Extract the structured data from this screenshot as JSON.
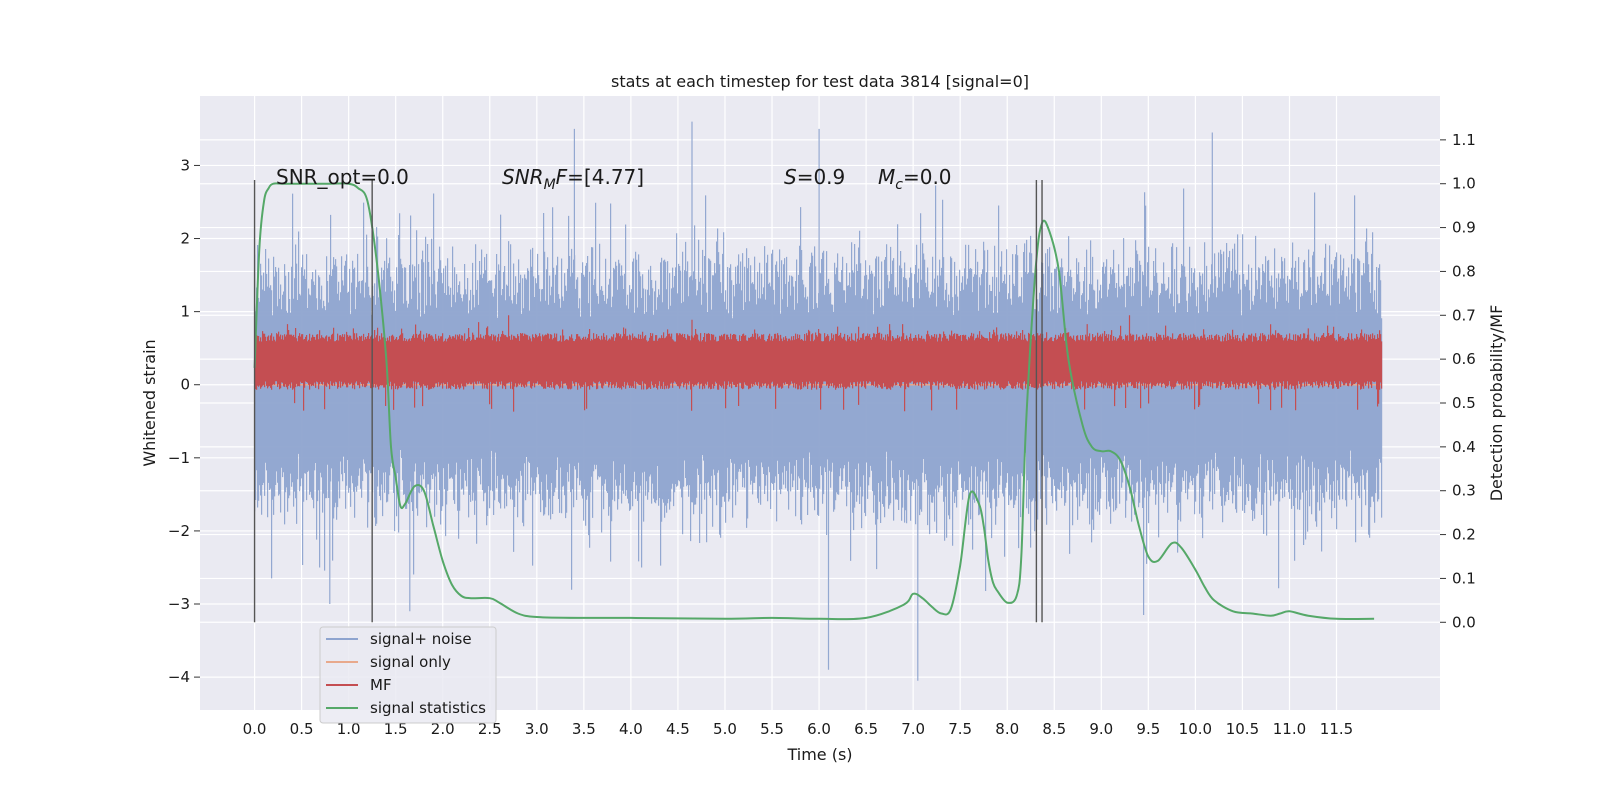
{
  "chart_data": {
    "type": "line",
    "title": "stats at each timestep for test data 3814 [signal=0]",
    "xlabel": "Time (s)",
    "ylabel": "Whitened strain",
    "y2label": "Detection probability/MF",
    "xlim": [
      -0.58,
      12.6
    ],
    "ylim": [
      -4.45,
      3.95
    ],
    "y2lim": [
      -0.2,
      1.2
    ],
    "x_ticks": [
      0.0,
      0.5,
      1.0,
      1.5,
      2.0,
      2.5,
      3.0,
      3.5,
      4.0,
      4.5,
      5.0,
      5.5,
      6.0,
      6.5,
      7.0,
      7.5,
      8.0,
      8.5,
      9.0,
      9.5,
      10.0,
      10.5,
      11.0,
      11.5
    ],
    "x_tick_labels": [
      "0.0",
      "0.5",
      "1.0",
      "1.5",
      "2.0",
      "2.5",
      "3.0",
      "3.5",
      "4.0",
      "4.5",
      "5.0",
      "5.5",
      "6.0",
      "6.5",
      "7.0",
      "7.5",
      "8.0",
      "8.5",
      "9.0",
      "9.5",
      "10.0",
      "10.5",
      "11.0",
      "11.5"
    ],
    "y_ticks": [
      -4,
      -3,
      -2,
      -1,
      0,
      1,
      2,
      3
    ],
    "y_tick_labels": [
      "−4",
      "−3",
      "−2",
      "−1",
      "0",
      "1",
      "2",
      "3"
    ],
    "y2_ticks": [
      0.0,
      0.1,
      0.2,
      0.3,
      0.4,
      0.5,
      0.6,
      0.7,
      0.8,
      0.9,
      1.0,
      1.1
    ],
    "y2_tick_labels": [
      "0.0",
      "0.1",
      "0.2",
      "0.3",
      "0.4",
      "0.5",
      "0.6",
      "0.7",
      "0.8",
      "0.9",
      "1.0",
      "1.1"
    ],
    "grid": true,
    "legend_position": "lower-left",
    "annotations": {
      "snr_opt": "SNR_opt=0.0",
      "snr_mf": "=[4.77]",
      "s_value": "=0.9",
      "mc_value": "=0.0"
    },
    "vertical_lines": [
      {
        "x": 0.0,
        "y_range": [
          -3.25,
          2.8
        ]
      },
      {
        "x": 1.25,
        "y_range": [
          -3.25,
          2.8
        ]
      },
      {
        "x": 8.31,
        "y_range": [
          -3.25,
          2.8
        ]
      },
      {
        "x": 8.37,
        "y_range": [
          -3.25,
          2.8
        ]
      }
    ],
    "series": [
      {
        "name": "signal+ noise",
        "color": "#8ea4cf",
        "axis": "left",
        "x_range": [
          0.0,
          11.98
        ],
        "envelope_typical": [
          -1.6,
          1.6
        ],
        "peaks": [
          {
            "x": 3.4,
            "y": 3.5
          },
          {
            "x": 4.65,
            "y": 3.6
          },
          {
            "x": 6.0,
            "y": 3.5
          },
          {
            "x": 10.18,
            "y": 3.45
          },
          {
            "x": 6.1,
            "y": -3.9
          },
          {
            "x": 7.05,
            "y": -4.05
          },
          {
            "x": 1.65,
            "y": -3.1
          },
          {
            "x": 0.8,
            "y": -3.0
          },
          {
            "x": 9.45,
            "y": -3.15
          }
        ]
      },
      {
        "name": "signal only",
        "color": "#e8a98c",
        "axis": "left",
        "x": [
          0.0,
          11.98
        ],
        "y": [
          0.0,
          0.0
        ]
      },
      {
        "name": "MF",
        "color": "#c44e52",
        "axis": "right",
        "x_range": [
          0.0,
          11.98
        ],
        "baseline": 0.6,
        "band": [
          0.53,
          0.66
        ],
        "peaks": [
          {
            "x": 0.35,
            "y": 0.68
          },
          {
            "x": 1.05,
            "y": 0.67
          },
          {
            "x": 2.7,
            "y": 0.7
          },
          {
            "x": 4.65,
            "y": 0.69
          },
          {
            "x": 6.75,
            "y": 0.68
          },
          {
            "x": 8.85,
            "y": 0.68
          },
          {
            "x": 9.3,
            "y": 0.7
          },
          {
            "x": 11.2,
            "y": 0.67
          }
        ]
      },
      {
        "name": "signal statistics",
        "color": "#55a868",
        "axis": "right",
        "x": [
          0.0,
          0.05,
          0.1,
          0.15,
          0.2,
          0.3,
          0.5,
          0.8,
          1.0,
          1.1,
          1.2,
          1.3,
          1.4,
          1.45,
          1.5,
          1.55,
          1.6,
          1.7,
          1.8,
          1.9,
          2.0,
          2.1,
          2.2,
          2.3,
          2.5,
          2.6,
          2.8,
          3.0,
          3.5,
          4.0,
          5.0,
          5.5,
          6.0,
          6.5,
          6.9,
          7.0,
          7.1,
          7.2,
          7.3,
          7.4,
          7.5,
          7.6,
          7.7,
          7.75,
          7.8,
          7.85,
          7.9,
          8.0,
          8.1,
          8.15,
          8.2,
          8.3,
          8.37,
          8.45,
          8.55,
          8.65,
          8.8,
          8.9,
          9.0,
          9.1,
          9.2,
          9.3,
          9.4,
          9.5,
          9.6,
          9.75,
          9.85,
          10.0,
          10.1,
          10.2,
          10.4,
          10.6,
          10.8,
          10.9,
          11.0,
          11.2,
          11.5,
          11.9
        ],
        "y": [
          0.58,
          0.85,
          0.96,
          0.99,
          1.0,
          1.0,
          1.0,
          1.0,
          1.0,
          0.99,
          0.96,
          0.82,
          0.6,
          0.4,
          0.33,
          0.265,
          0.27,
          0.31,
          0.3,
          0.22,
          0.14,
          0.085,
          0.06,
          0.055,
          0.055,
          0.045,
          0.02,
          0.012,
          0.01,
          0.01,
          0.008,
          0.01,
          0.008,
          0.01,
          0.04,
          0.065,
          0.055,
          0.035,
          0.02,
          0.03,
          0.13,
          0.29,
          0.27,
          0.22,
          0.14,
          0.09,
          0.07,
          0.045,
          0.06,
          0.15,
          0.45,
          0.8,
          0.91,
          0.89,
          0.8,
          0.6,
          0.45,
          0.4,
          0.39,
          0.39,
          0.37,
          0.31,
          0.22,
          0.15,
          0.14,
          0.18,
          0.17,
          0.12,
          0.08,
          0.05,
          0.025,
          0.02,
          0.015,
          0.02,
          0.025,
          0.015,
          0.008,
          0.008
        ]
      }
    ]
  }
}
